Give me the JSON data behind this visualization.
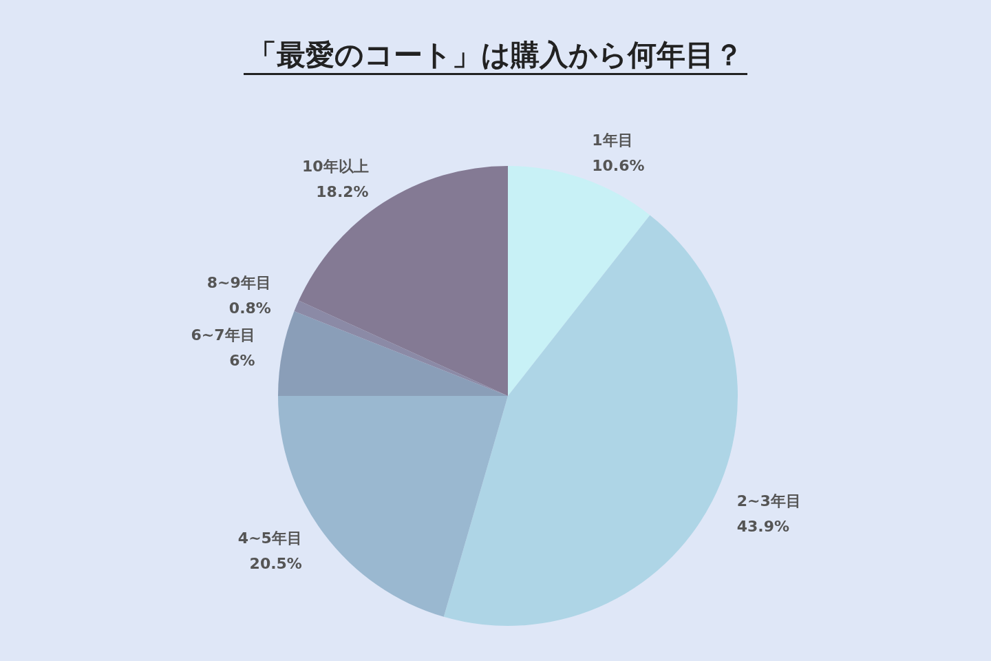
{
  "chart_data": {
    "type": "pie",
    "title": "「最愛のコート」は購入から何年目？",
    "categories": [
      "1年目",
      "2~3年目",
      "4~5年目",
      "6~7年目",
      "8~9年目",
      "10年以上"
    ],
    "values": [
      10.6,
      43.9,
      20.5,
      6,
      0.8,
      18.2
    ],
    "value_labels": [
      "10.6%",
      "43.9%",
      "20.5%",
      "6%",
      "0.8%",
      "18.2%"
    ],
    "colors": [
      "#c8f1f6",
      "#aed5e6",
      "#9ab8d0",
      "#8a9eb8",
      "#8b8aa6",
      "#847a94"
    ],
    "legend": false
  }
}
